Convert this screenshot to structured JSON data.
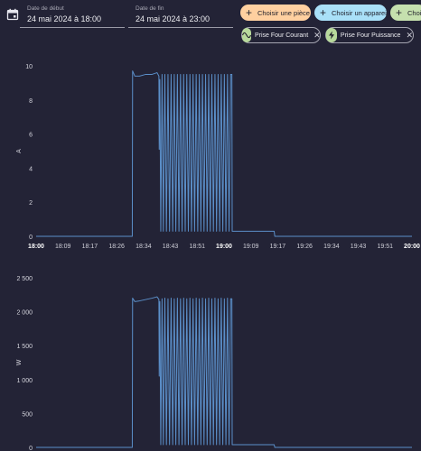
{
  "header": {
    "start": {
      "label": "Date de début",
      "value": "24 mai 2024 à 18:00"
    },
    "end": {
      "label": "Date de fin",
      "value": "24 mai 2024 à 23:00"
    },
    "buttons": [
      {
        "label": "Choisir une pièce",
        "color": "#ffd0a0"
      },
      {
        "label": "Choisir un appareil",
        "color": "#a9e0f8"
      },
      {
        "label": "Choisir",
        "color": "#c5e0ae"
      }
    ],
    "chips": [
      {
        "label": "Prise Four Courant",
        "icon": "sine-wave-icon"
      },
      {
        "label": "Prise Four Puissance",
        "icon": "lightning-icon"
      }
    ]
  },
  "chart_data": [
    {
      "type": "line",
      "ylabel": "A",
      "ylim": [
        0,
        10
      ],
      "yticks": [
        "0",
        "2",
        "4",
        "6",
        "8",
        "10"
      ],
      "xticks": [
        "18:00",
        "18:09",
        "18:17",
        "18:26",
        "18:34",
        "18:43",
        "18:51",
        "19:00",
        "19:09",
        "19:17",
        "19:26",
        "19:34",
        "19:43",
        "19:51",
        "20:00"
      ],
      "bold_ticks": [
        "18:00",
        "19:00",
        "20:00"
      ],
      "x_range_minutes": [
        0,
        120
      ],
      "line_color": "#5b8fc9",
      "points": [
        [
          0,
          0
        ],
        [
          30.7,
          0
        ],
        [
          30.8,
          9.7
        ],
        [
          31.5,
          9.4
        ],
        [
          33,
          9.4
        ],
        [
          35,
          9.5
        ],
        [
          37,
          9.5
        ],
        [
          38.6,
          9.6
        ],
        [
          39.2,
          9.4
        ],
        [
          39.3,
          5.1
        ],
        [
          39.5,
          9.2
        ],
        [
          39.8,
          0.3
        ],
        [
          40.2,
          9.5
        ],
        [
          40.6,
          0.3
        ],
        [
          41.1,
          9.5
        ],
        [
          41.6,
          0.3
        ],
        [
          42.1,
          9.5
        ],
        [
          42.6,
          0.3
        ],
        [
          43.1,
          9.5
        ],
        [
          43.6,
          0.3
        ],
        [
          44.1,
          9.5
        ],
        [
          44.6,
          0.3
        ],
        [
          45.1,
          9.5
        ],
        [
          45.6,
          0.3
        ],
        [
          46.1,
          9.5
        ],
        [
          46.6,
          0.3
        ],
        [
          47.1,
          9.5
        ],
        [
          47.6,
          0.3
        ],
        [
          48.1,
          9.5
        ],
        [
          48.6,
          0.3
        ],
        [
          49.1,
          9.5
        ],
        [
          49.6,
          0.3
        ],
        [
          50.1,
          9.5
        ],
        [
          50.6,
          0.3
        ],
        [
          51.1,
          9.5
        ],
        [
          51.6,
          0.3
        ],
        [
          52.1,
          9.5
        ],
        [
          52.6,
          0.3
        ],
        [
          53.1,
          9.5
        ],
        [
          53.6,
          0.3
        ],
        [
          54.1,
          9.5
        ],
        [
          54.6,
          0.3
        ],
        [
          55.1,
          9.5
        ],
        [
          55.6,
          0.3
        ],
        [
          56.1,
          9.5
        ],
        [
          56.6,
          0.3
        ],
        [
          57.1,
          9.5
        ],
        [
          57.6,
          0.3
        ],
        [
          58.1,
          9.5
        ],
        [
          58.6,
          0.3
        ],
        [
          59.1,
          9.5
        ],
        [
          59.6,
          0.3
        ],
        [
          60.1,
          9.5
        ],
        [
          60.6,
          0.3
        ],
        [
          61.1,
          9.5
        ],
        [
          61.6,
          0.3
        ],
        [
          62.1,
          9.5
        ],
        [
          62.5,
          9.5
        ],
        [
          62.6,
          0.3
        ],
        [
          76,
          0.3
        ],
        [
          76.2,
          0
        ],
        [
          120,
          0
        ]
      ]
    },
    {
      "type": "line",
      "ylabel": "W",
      "ylim": [
        0,
        2500
      ],
      "yticks": [
        "0",
        "500",
        "1 000",
        "1 500",
        "2 000",
        "2 500"
      ],
      "xticks": [],
      "x_range_minutes": [
        0,
        120
      ],
      "line_color": "#5b8fc9",
      "points": [
        [
          0,
          0
        ],
        [
          30.7,
          0
        ],
        [
          30.8,
          2200
        ],
        [
          31.5,
          2150
        ],
        [
          33,
          2160
        ],
        [
          35,
          2180
        ],
        [
          37,
          2200
        ],
        [
          38.6,
          2220
        ],
        [
          39.2,
          2180
        ],
        [
          39.3,
          1050
        ],
        [
          39.5,
          2150
        ],
        [
          39.8,
          40
        ],
        [
          40.2,
          2190
        ],
        [
          40.6,
          40
        ],
        [
          41.1,
          2200
        ],
        [
          41.6,
          40
        ],
        [
          42.1,
          2190
        ],
        [
          42.6,
          40
        ],
        [
          43.1,
          2200
        ],
        [
          43.6,
          40
        ],
        [
          44.1,
          2190
        ],
        [
          44.6,
          40
        ],
        [
          45.1,
          2200
        ],
        [
          45.6,
          40
        ],
        [
          46.1,
          2190
        ],
        [
          46.6,
          40
        ],
        [
          47.1,
          2200
        ],
        [
          47.6,
          40
        ],
        [
          48.1,
          2190
        ],
        [
          48.6,
          40
        ],
        [
          49.1,
          2200
        ],
        [
          49.6,
          40
        ],
        [
          50.1,
          2190
        ],
        [
          50.6,
          40
        ],
        [
          51.1,
          2200
        ],
        [
          51.6,
          40
        ],
        [
          52.1,
          2190
        ],
        [
          52.6,
          40
        ],
        [
          53.1,
          2200
        ],
        [
          53.6,
          40
        ],
        [
          54.1,
          2190
        ],
        [
          54.6,
          40
        ],
        [
          55.1,
          2200
        ],
        [
          55.6,
          40
        ],
        [
          56.1,
          2190
        ],
        [
          56.6,
          40
        ],
        [
          57.1,
          2200
        ],
        [
          57.6,
          40
        ],
        [
          58.1,
          2190
        ],
        [
          58.6,
          40
        ],
        [
          59.1,
          2200
        ],
        [
          59.6,
          40
        ],
        [
          60.1,
          2190
        ],
        [
          60.6,
          40
        ],
        [
          61.1,
          2200
        ],
        [
          61.6,
          40
        ],
        [
          62.1,
          2190
        ],
        [
          62.5,
          2190
        ],
        [
          62.6,
          40
        ],
        [
          76,
          40
        ],
        [
          76.2,
          0
        ],
        [
          120,
          0
        ]
      ]
    }
  ]
}
